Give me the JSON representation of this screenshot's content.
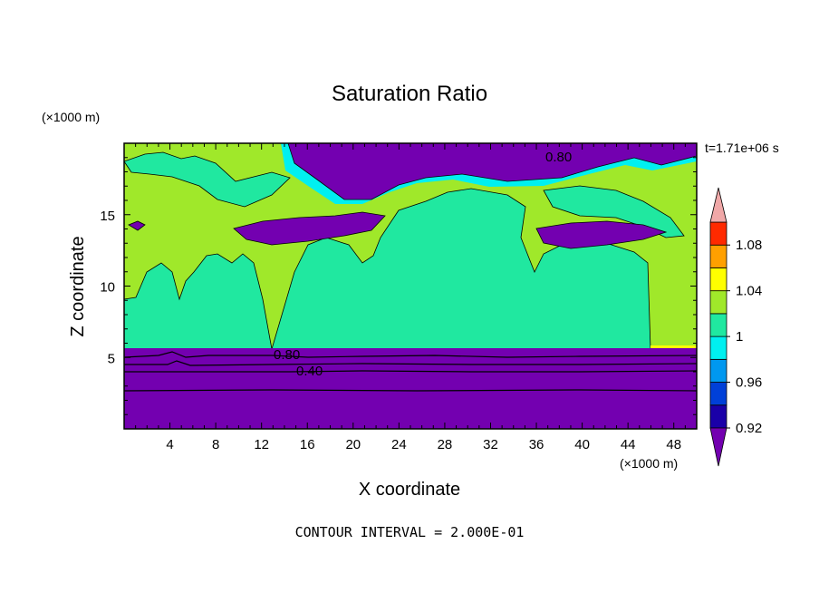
{
  "chart_data": {
    "type": "heatmap",
    "title": "Saturation Ratio",
    "xlabel": "X coordinate",
    "ylabel": "Z coordinate",
    "x_unit_label": "(×1000 m)",
    "y_unit_label": "(×1000 m)",
    "time_label": "t=1.71e+06 s",
    "footer": "CONTOUR INTERVAL = 2.000E-01",
    "xlim": [
      0,
      50
    ],
    "ylim": [
      0,
      20
    ],
    "x_ticks": [
      "4",
      "8",
      "12",
      "16",
      "20",
      "24",
      "28",
      "32",
      "36",
      "40",
      "44",
      "48"
    ],
    "y_ticks": [
      "5",
      "10",
      "15"
    ],
    "contour_labels": [
      "0.80",
      "0.80",
      "0.40"
    ],
    "colorbar": {
      "labels": [
        "1.08",
        "1.04",
        "1",
        "0.96",
        "0.92"
      ],
      "levels": [
        0.92,
        0.94,
        0.96,
        0.98,
        1.0,
        1.02,
        1.04,
        1.06,
        1.08,
        1.1
      ],
      "colors": [
        "#7300b0",
        "#1a00a8",
        "#0040d8",
        "#0098f0",
        "#00f0f0",
        "#20e8a0",
        "#a0e82a",
        "#ffff00",
        "#ffa000",
        "#ff2a00",
        "#f0a8a8"
      ],
      "over_color": "#f0a8a8",
      "under_color": "#7300b0"
    },
    "regions": [
      {
        "name": "lower-layer",
        "z_range": [
          0,
          5.6
        ],
        "value": "below 0.92"
      },
      {
        "name": "mid-layer",
        "z_range": [
          5.6,
          19.8
        ],
        "value": "0.98 to 1.02"
      },
      {
        "name": "upper-dry-patches",
        "z_range": [
          12.8,
          19.8
        ],
        "value": "below 0.92"
      }
    ]
  }
}
